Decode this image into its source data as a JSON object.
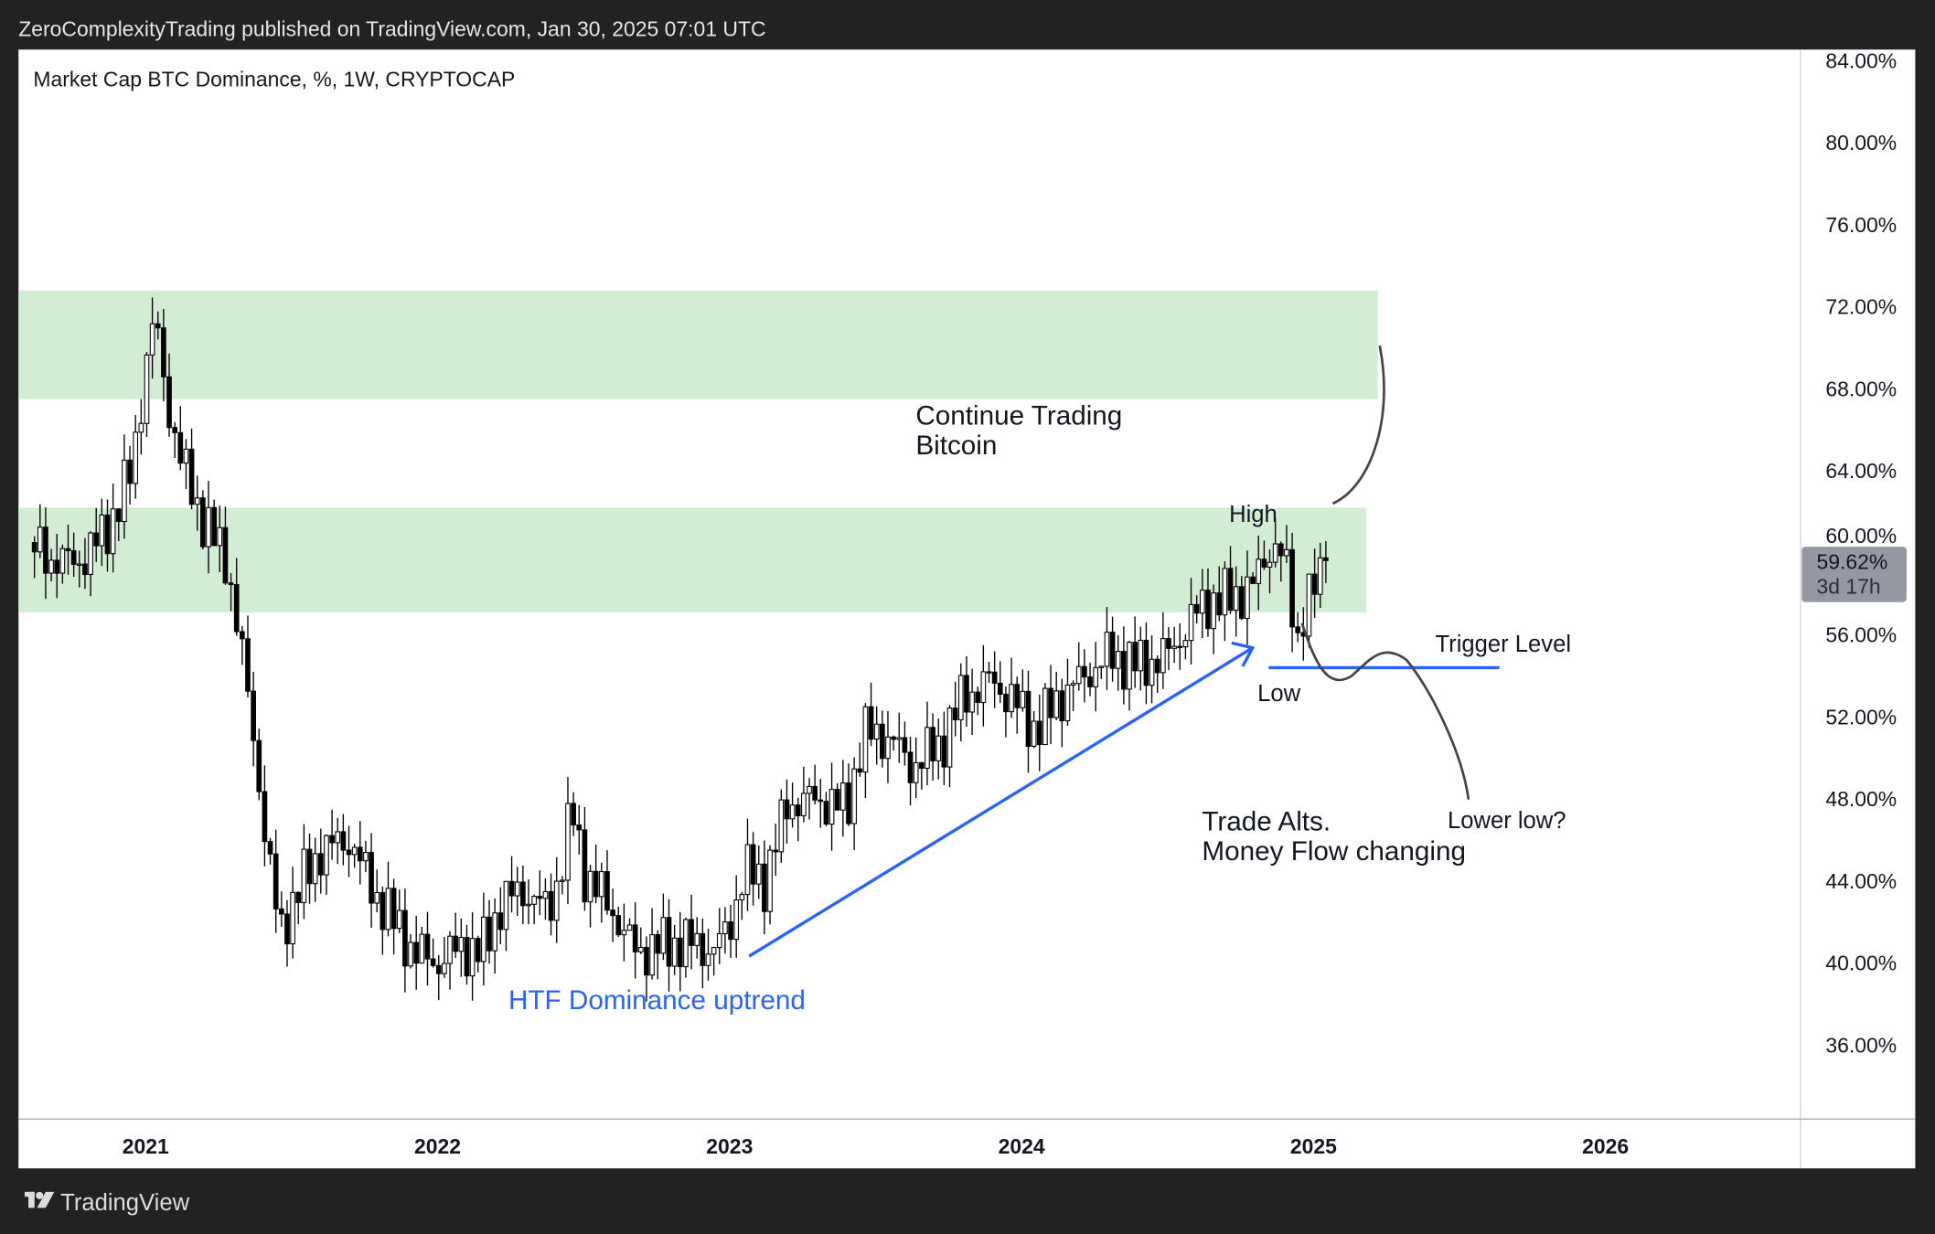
{
  "header": {
    "published": "ZeroComplexityTrading published on TradingView.com, Jan 30, 2025 07:01 UTC"
  },
  "footer": {
    "brand": "TradingView"
  },
  "chart_data": {
    "type": "candlestick",
    "title": "Market Cap BTC Dominance, %, 1W, CRYPTOCAP",
    "ylim": [
      34,
      86
    ],
    "y_ticks": [
      "84.00%",
      "80.00%",
      "76.00%",
      "72.00%",
      "68.00%",
      "64.00%",
      "60.00%",
      "56.00%",
      "52.00%",
      "48.00%",
      "44.00%",
      "40.00%",
      "36.00%"
    ],
    "y_tick_values": [
      84,
      80,
      76,
      72,
      68,
      64,
      60,
      56,
      52,
      48,
      44,
      40,
      36
    ],
    "x_ticks": [
      "2021",
      "2022",
      "2023",
      "2024",
      "2025",
      "2026"
    ],
    "x_tick_values": [
      2021,
      2022,
      2023,
      2024,
      2025,
      2026
    ],
    "last_price": {
      "value": "59.62%",
      "countdown": "3d 17h"
    },
    "close_anchors": [
      [
        2020.6,
        60.5
      ],
      [
        2020.7,
        59.5
      ],
      [
        2020.8,
        59.8
      ],
      [
        2020.9,
        62
      ],
      [
        2020.95,
        64
      ],
      [
        2021.0,
        69
      ],
      [
        2021.03,
        71.5
      ],
      [
        2021.08,
        67
      ],
      [
        2021.12,
        64.5
      ],
      [
        2021.2,
        61.5
      ],
      [
        2021.28,
        59.5
      ],
      [
        2021.33,
        55
      ],
      [
        2021.37,
        51
      ],
      [
        2021.42,
        45
      ],
      [
        2021.46,
        41.5
      ],
      [
        2021.52,
        43.5
      ],
      [
        2021.6,
        45.5
      ],
      [
        2021.7,
        46
      ],
      [
        2021.78,
        43.5
      ],
      [
        2021.85,
        42
      ],
      [
        2021.92,
        40.5
      ],
      [
        2022.0,
        40
      ],
      [
        2022.08,
        40.8
      ],
      [
        2022.15,
        40.5
      ],
      [
        2022.22,
        43
      ],
      [
        2022.3,
        43.5
      ],
      [
        2022.38,
        42.5
      ],
      [
        2022.42,
        44.5
      ],
      [
        2022.46,
        47.5
      ],
      [
        2022.5,
        44.5
      ],
      [
        2022.6,
        42.5
      ],
      [
        2022.68,
        40.5
      ],
      [
        2022.75,
        40.8
      ],
      [
        2022.85,
        41
      ],
      [
        2022.95,
        40.6
      ],
      [
        2023.0,
        41.8
      ],
      [
        2023.05,
        44.5
      ],
      [
        2023.12,
        44
      ],
      [
        2023.2,
        47.8
      ],
      [
        2023.3,
        48
      ],
      [
        2023.4,
        47.5
      ],
      [
        2023.46,
        51.2
      ],
      [
        2023.55,
        51
      ],
      [
        2023.62,
        49.6
      ],
      [
        2023.72,
        50.6
      ],
      [
        2023.8,
        53
      ],
      [
        2023.9,
        53.8
      ],
      [
        2024.0,
        52.3
      ],
      [
        2024.05,
        51.3
      ],
      [
        2024.12,
        52.8
      ],
      [
        2024.2,
        53.8
      ],
      [
        2024.3,
        55
      ],
      [
        2024.4,
        54.5
      ],
      [
        2024.5,
        55
      ],
      [
        2024.57,
        56.5
      ],
      [
        2024.63,
        57.6
      ],
      [
        2024.72,
        57.8
      ],
      [
        2024.8,
        58.5
      ],
      [
        2024.84,
        60
      ],
      [
        2024.87,
        60.5
      ],
      [
        2024.91,
        59
      ],
      [
        2024.94,
        55.5
      ],
      [
        2024.97,
        57.5
      ],
      [
        2025.0,
        58.2
      ],
      [
        2025.03,
        58.8
      ],
      [
        2025.06,
        59.62
      ]
    ],
    "zones": [
      {
        "name": "upper-supply-zone",
        "from": 67.5,
        "to": 72.8,
        "x_start": 2020.55,
        "x_end": 2025.22,
        "color": "#d3edd4"
      },
      {
        "name": "mid-zone",
        "from": 57.1,
        "to": 62.2,
        "x_start": 2020.55,
        "x_end": 2025.18,
        "color": "#d3edd4"
      }
    ],
    "trigger_level": {
      "value": 54.4,
      "label": "Trigger Level",
      "color": "#2962ff"
    },
    "annotations": {
      "continue_1": "Continue Trading",
      "continue_2": "Bitcoin",
      "high": "High",
      "low": "Low",
      "lower_low": "Lower low?",
      "trade_alts_1": "Trade Alts.",
      "trade_alts_2": "Money Flow changing",
      "uptrend": "HTF Dominance uptrend"
    },
    "colors": {
      "accent": "#2962ff",
      "candle": "#000000",
      "label_bg": "#9598a1"
    }
  }
}
